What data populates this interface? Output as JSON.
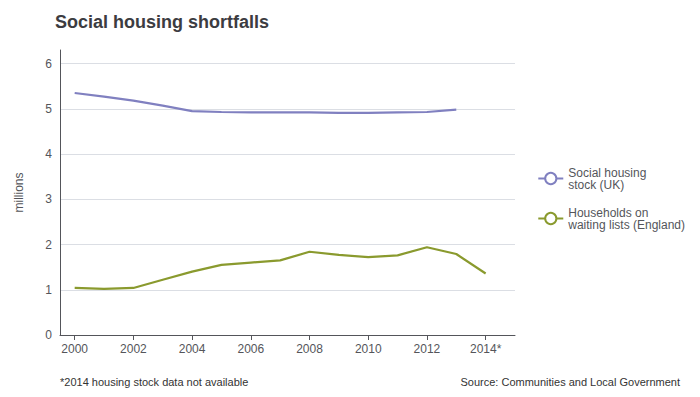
{
  "chart_data": {
    "type": "line",
    "title": "Social housing shortfalls",
    "ylabel": "millions",
    "x": [
      2000,
      2001,
      2002,
      2003,
      2004,
      2005,
      2006,
      2007,
      2008,
      2009,
      2010,
      2011,
      2012,
      2013,
      2014
    ],
    "series": [
      {
        "name": "Social housing\nstock (UK)",
        "color": "#8080c0",
        "values": [
          5.35,
          5.27,
          5.18,
          5.07,
          4.95,
          4.93,
          4.92,
          4.92,
          4.92,
          4.91,
          4.91,
          4.92,
          4.93,
          4.98,
          null
        ]
      },
      {
        "name": "Households on\nwaiting lists (England)",
        "color": "#8a9a2e",
        "values": [
          1.04,
          1.02,
          1.04,
          1.22,
          1.4,
          1.55,
          1.6,
          1.65,
          1.84,
          1.77,
          1.72,
          1.76,
          1.94,
          1.79,
          1.36
        ]
      }
    ],
    "xlim": [
      1999.5,
      2015.0
    ],
    "xticks": [
      2000,
      2002,
      2004,
      2006,
      2008,
      2010,
      2012,
      {
        "value": 2014,
        "label": "2014*"
      }
    ],
    "ylim": [
      0,
      6.3
    ],
    "yticks": [
      0,
      1,
      2,
      3,
      4,
      5,
      6
    ],
    "grid": true,
    "legend": "right",
    "annotations": [
      "*2014 housing stock data not available",
      "Source: Communities and Local Government"
    ]
  }
}
